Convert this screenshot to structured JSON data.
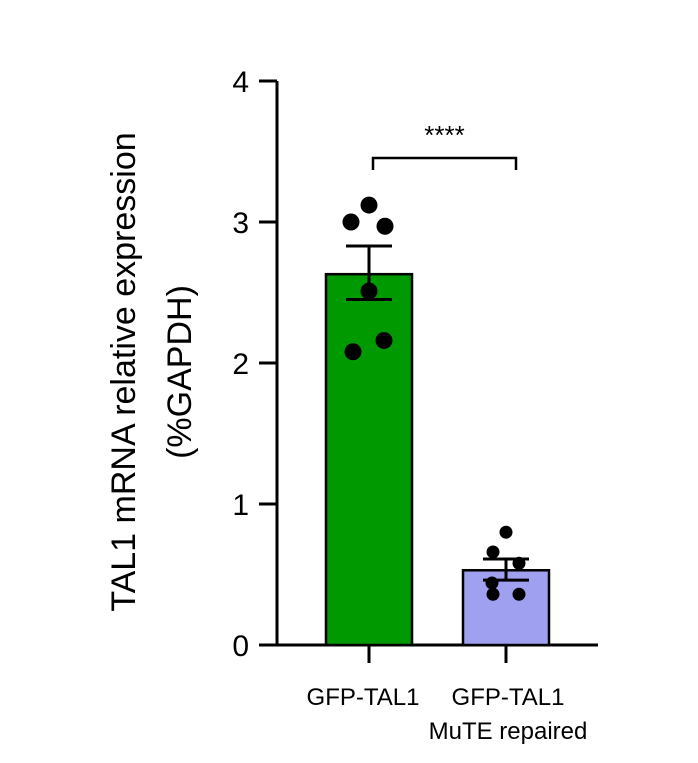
{
  "chart_data": {
    "type": "bar",
    "categories": [
      "GFP-TAL1",
      "GFP-TAL1 MuTE repaired"
    ],
    "category_labels": [
      [
        "GFP-TAL1"
      ],
      [
        "GFP-TAL1",
        "MuTE repaired"
      ]
    ],
    "values": [
      2.63,
      0.53
    ],
    "error_bars": [
      {
        "upper": 2.83,
        "lower": 2.45
      },
      {
        "upper": 0.61,
        "lower": 0.46
      }
    ],
    "points": [
      [
        3.12,
        3.0,
        2.97,
        2.51,
        2.16,
        2.08
      ],
      [
        0.8,
        0.66,
        0.58,
        0.44,
        0.36,
        0.36
      ]
    ],
    "colors": [
      "#009900",
      "#a0a0f0"
    ],
    "ylabel": [
      "TAL1 mRNA relative expression",
      "(%GAPDH)"
    ],
    "yticks": [
      "0",
      "1",
      "2",
      "3",
      "4"
    ],
    "ylim": [
      0,
      4
    ],
    "significance": {
      "label": "****",
      "between": [
        0,
        1
      ]
    }
  }
}
